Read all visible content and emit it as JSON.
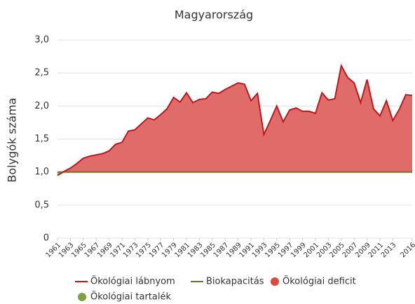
{
  "chart_data": {
    "type": "area",
    "title": "Magyarország",
    "y_label": "Bolygók száma",
    "x": [
      1961,
      1962,
      1963,
      1964,
      1965,
      1966,
      1967,
      1968,
      1969,
      1970,
      1971,
      1972,
      1973,
      1974,
      1975,
      1976,
      1977,
      1978,
      1979,
      1980,
      1981,
      1982,
      1983,
      1984,
      1985,
      1986,
      1987,
      1988,
      1989,
      1990,
      1991,
      1992,
      1993,
      1994,
      1995,
      1996,
      1997,
      1998,
      1999,
      2000,
      2001,
      2002,
      2003,
      2004,
      2005,
      2006,
      2007,
      2008,
      2009,
      2010,
      2011,
      2012,
      2013,
      2014,
      2015,
      2016
    ],
    "series": [
      {
        "name": "Ökológiai lábnyom",
        "color": "#c0161c",
        "values": [
          0.95,
          1.01,
          1.06,
          1.13,
          1.21,
          1.24,
          1.26,
          1.28,
          1.32,
          1.42,
          1.45,
          1.62,
          1.64,
          1.73,
          1.82,
          1.79,
          1.87,
          1.96,
          2.13,
          2.06,
          2.2,
          2.05,
          2.1,
          2.11,
          2.21,
          2.19,
          2.25,
          2.3,
          2.35,
          2.33,
          2.08,
          2.19,
          1.57,
          1.78,
          2.0,
          1.76,
          1.94,
          1.97,
          1.92,
          1.92,
          1.89,
          2.2,
          2.09,
          2.11,
          2.61,
          2.43,
          2.35,
          2.05,
          2.4,
          1.96,
          1.85,
          2.08,
          1.78,
          1.95,
          2.17,
          2.16
        ]
      },
      {
        "name": "Biokapacitás",
        "color": "#5b7a1e",
        "values": [
          1.0,
          1.0,
          1.0,
          1.0,
          1.0,
          1.0,
          1.0,
          1.0,
          1.0,
          1.0,
          1.0,
          1.0,
          1.0,
          1.0,
          1.0,
          1.0,
          1.0,
          1.0,
          1.0,
          1.0,
          1.0,
          1.0,
          1.0,
          1.0,
          1.0,
          1.0,
          1.0,
          1.0,
          1.0,
          1.0,
          1.0,
          1.0,
          1.0,
          1.0,
          1.0,
          1.0,
          1.0,
          1.0,
          1.0,
          1.0,
          1.0,
          1.0,
          1.0,
          1.0,
          1.0,
          1.0,
          1.0,
          1.0,
          1.0,
          1.0,
          1.0,
          1.0,
          1.0,
          1.0,
          1.0,
          1.0
        ]
      }
    ],
    "areas": [
      {
        "name": "Ökológiai deficit",
        "color": "#e0483f",
        "fill": "#e06c6a"
      },
      {
        "name": "Ökológiai tartalék",
        "color": "#7ba33f",
        "fill": "#9dc06a"
      }
    ],
    "xlim": [
      1961,
      2016
    ],
    "xticks": [
      1961,
      1963,
      1965,
      1967,
      1969,
      1971,
      1973,
      1975,
      1977,
      1979,
      1981,
      1983,
      1985,
      1987,
      1989,
      1991,
      1993,
      1995,
      1997,
      1999,
      2001,
      2003,
      2005,
      2007,
      2009,
      2011,
      2013,
      2016
    ],
    "ylim": [
      0,
      3
    ],
    "yticks": [
      0,
      {
        "value": 0.5,
        "label": "0,5"
      },
      {
        "value": 1,
        "label": "1,0"
      },
      {
        "value": 1.5,
        "label": "1,5"
      },
      {
        "value": 2,
        "label": "2,0"
      },
      {
        "value": 2.5,
        "label": "2,5"
      },
      {
        "value": 3,
        "label": "3,0"
      }
    ],
    "grid": true
  }
}
